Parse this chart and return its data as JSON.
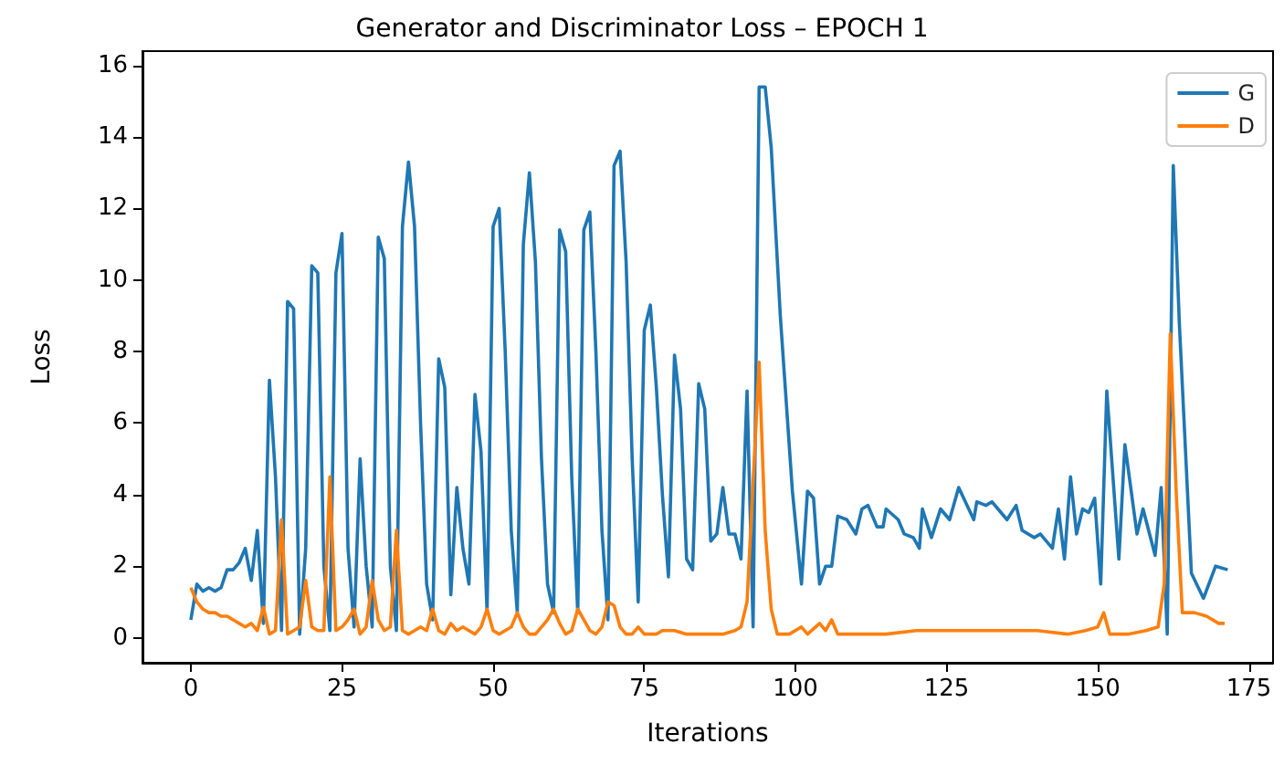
{
  "chart_data": {
    "type": "line",
    "title": "Generator and Discriminator Loss – EPOCH 1",
    "xlabel": "Iterations",
    "ylabel": "Loss",
    "xlim": [
      -8,
      179
    ],
    "xticks": [
      0,
      25,
      50,
      75,
      100,
      125,
      150,
      175
    ],
    "ylim": [
      -0.7,
      16.4
    ],
    "yticks": [
      0,
      2,
      4,
      6,
      8,
      10,
      12,
      14,
      16
    ],
    "grid": false,
    "legend": "top right",
    "series": [
      {
        "name": "G",
        "color": "#1f77b4",
        "x": [
          0,
          1,
          2,
          3,
          4,
          5,
          6,
          7,
          8,
          9,
          10,
          11,
          12,
          13,
          14,
          15,
          16,
          17,
          18,
          19,
          20,
          21,
          22,
          23,
          24,
          25,
          26,
          27,
          28,
          29,
          30,
          31,
          32,
          33,
          34,
          35,
          36,
          37,
          38,
          39,
          40,
          41,
          42,
          43,
          44,
          45,
          46,
          47,
          48,
          49,
          50,
          51,
          52,
          53,
          54,
          55,
          56,
          57,
          58,
          59,
          60,
          61,
          62,
          63,
          64,
          65,
          66,
          67,
          68,
          69,
          70,
          71,
          72,
          73,
          74,
          75,
          76,
          77,
          78,
          79,
          80,
          81,
          82,
          83,
          84,
          85,
          86,
          87,
          88,
          89,
          90,
          91,
          92,
          93,
          94,
          95,
          96,
          97.5,
          99.5,
          101,
          102,
          103,
          104,
          105,
          106,
          107,
          108.5,
          110,
          111,
          112,
          113.5,
          114.5,
          115,
          117,
          118,
          119.5,
          120.5,
          121,
          122.5,
          124,
          125.5,
          127,
          129.5,
          130,
          131.5,
          132.5,
          133.5,
          135,
          136.5,
          137.5,
          139.5,
          140.5,
          142.5,
          143.5,
          144.5,
          145.5,
          146.5,
          147.5,
          148.5,
          149.5,
          150.5,
          151.5,
          153.5,
          154.5,
          156.5,
          157.5,
          159.5,
          160.5,
          161.5,
          162.5,
          163.5,
          165.5,
          167.5,
          169.5,
          171.5
        ],
        "values": [
          0.5,
          1.5,
          1.3,
          1.4,
          1.3,
          1.4,
          1.9,
          1.9,
          2.1,
          2.5,
          1.6,
          3.0,
          0.4,
          7.2,
          4.5,
          0.2,
          9.4,
          9.2,
          0.1,
          2.5,
          10.4,
          10.2,
          2.0,
          0.2,
          10.2,
          11.3,
          2.5,
          0.3,
          5.0,
          2.0,
          0.3,
          11.2,
          10.6,
          2.0,
          0.2,
          11.5,
          13.3,
          11.5,
          6.0,
          1.5,
          0.5,
          7.8,
          7.0,
          1.2,
          4.2,
          2.5,
          1.5,
          6.8,
          5.2,
          0.7,
          11.5,
          12.0,
          8.0,
          3.0,
          0.7,
          11.0,
          13.0,
          10.5,
          5.0,
          1.5,
          0.7,
          11.4,
          10.8,
          4.5,
          0.7,
          11.4,
          11.9,
          8.0,
          3.0,
          0.5,
          13.2,
          13.6,
          10.5,
          5.0,
          1.0,
          8.6,
          9.3,
          7.0,
          4.0,
          1.7,
          7.9,
          6.4,
          2.2,
          1.9,
          7.1,
          6.4,
          2.7,
          2.9,
          4.2,
          2.9,
          2.9,
          2.2,
          6.9,
          0.3,
          15.4,
          15.4,
          13.7,
          9.0,
          4.1,
          1.5,
          4.1,
          3.9,
          1.5,
          2.0,
          2.0,
          3.4,
          3.3,
          2.9,
          3.6,
          3.7,
          3.1,
          3.1,
          3.6,
          3.3,
          2.9,
          2.8,
          2.5,
          3.6,
          2.8,
          3.6,
          3.3,
          4.2,
          3.3,
          3.8,
          3.7,
          3.8,
          3.6,
          3.3,
          3.7,
          3.0,
          2.8,
          2.9,
          2.5,
          3.6,
          2.2,
          4.5,
          2.9,
          3.6,
          3.5,
          3.9,
          1.5,
          6.9,
          2.2,
          5.4,
          2.9,
          3.6,
          2.3,
          4.2,
          0.1,
          13.2,
          8.8,
          1.8,
          1.1,
          2.0,
          1.9
        ]
      },
      {
        "name": "D",
        "color": "#ff7f0e",
        "x": [
          0,
          1,
          2,
          3,
          4,
          5,
          6,
          7,
          8,
          9,
          10,
          11,
          12,
          13,
          14,
          15,
          16,
          17,
          18,
          19,
          20,
          21,
          22,
          23,
          24,
          25,
          26,
          27,
          28,
          29,
          30,
          31,
          32,
          33,
          34,
          35,
          36,
          37,
          38,
          39,
          40,
          41,
          42,
          43,
          44,
          45,
          46,
          47,
          48,
          49,
          50,
          51,
          52,
          53,
          54,
          55,
          56,
          57,
          58,
          59,
          60,
          61,
          62,
          63,
          64,
          65,
          66,
          67,
          68,
          69,
          70,
          71,
          72,
          73,
          74,
          75,
          76,
          77,
          78,
          80,
          82,
          85,
          88,
          90,
          91,
          92,
          94,
          95,
          96,
          97,
          99,
          101,
          102,
          104,
          105,
          106,
          107,
          110,
          115,
          120,
          125,
          130,
          135,
          140,
          145,
          148,
          150,
          151,
          152,
          155,
          158,
          160,
          161,
          162,
          163,
          164,
          166,
          168,
          170,
          171
        ],
        "values": [
          1.4,
          1.0,
          0.8,
          0.7,
          0.7,
          0.6,
          0.6,
          0.5,
          0.4,
          0.3,
          0.4,
          0.2,
          0.85,
          0.1,
          0.2,
          3.3,
          0.1,
          0.2,
          0.3,
          1.6,
          0.3,
          0.2,
          0.2,
          4.5,
          0.2,
          0.3,
          0.5,
          0.8,
          0.1,
          0.3,
          1.6,
          0.5,
          0.2,
          0.3,
          3.0,
          0.2,
          0.1,
          0.2,
          0.3,
          0.2,
          0.8,
          0.2,
          0.1,
          0.4,
          0.2,
          0.3,
          0.2,
          0.1,
          0.3,
          0.8,
          0.2,
          0.1,
          0.2,
          0.3,
          0.7,
          0.3,
          0.1,
          0.1,
          0.3,
          0.5,
          0.8,
          0.4,
          0.1,
          0.2,
          0.8,
          0.5,
          0.2,
          0.1,
          0.3,
          1.0,
          0.9,
          0.3,
          0.1,
          0.1,
          0.3,
          0.1,
          0.1,
          0.1,
          0.2,
          0.2,
          0.1,
          0.1,
          0.1,
          0.2,
          0.3,
          1.0,
          7.7,
          3.0,
          0.8,
          0.1,
          0.1,
          0.3,
          0.1,
          0.4,
          0.2,
          0.5,
          0.1,
          0.1,
          0.1,
          0.2,
          0.2,
          0.2,
          0.2,
          0.2,
          0.1,
          0.2,
          0.3,
          0.7,
          0.1,
          0.1,
          0.2,
          0.3,
          1.5,
          8.5,
          4.0,
          0.7,
          0.7,
          0.6,
          0.4,
          0.4
        ]
      }
    ]
  }
}
